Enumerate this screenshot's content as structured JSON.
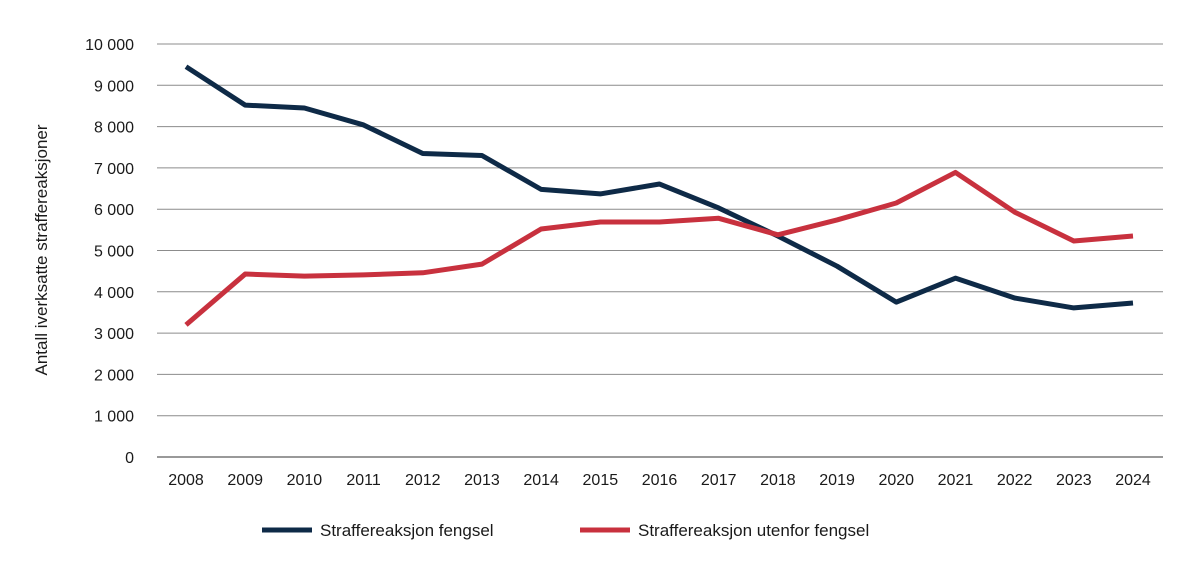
{
  "chart_data": {
    "type": "line",
    "title": "",
    "xlabel": "",
    "ylabel": "Antall iverksatte straffereaksjoner",
    "ylim": [
      0,
      10000
    ],
    "yticks": [
      0,
      1000,
      2000,
      3000,
      4000,
      5000,
      6000,
      7000,
      8000,
      9000,
      10000
    ],
    "ytick_labels": [
      "0",
      "1 000",
      "2 000",
      "3 000",
      "4 000",
      "5 000",
      "6 000",
      "7 000",
      "8 000",
      "9 000",
      "10 000"
    ],
    "grid": true,
    "legend_position": "bottom",
    "categories": [
      "2008",
      "2009",
      "2010",
      "2011",
      "2012",
      "2013",
      "2014",
      "2015",
      "2016",
      "2017",
      "2018",
      "2019",
      "2020",
      "2021",
      "2022",
      "2023",
      "2024"
    ],
    "series": [
      {
        "name": "Straffereaksjon fengsel",
        "color": "#0e2a47",
        "values": [
          9450,
          8520,
          8450,
          8040,
          7350,
          7300,
          6480,
          6370,
          6610,
          6030,
          5350,
          4620,
          3750,
          4330,
          3850,
          3610,
          3730
        ]
      },
      {
        "name": "Straffereaksjon utenfor fengsel",
        "color": "#c8313e",
        "values": [
          3200,
          4430,
          4380,
          4410,
          4460,
          4670,
          5520,
          5690,
          5690,
          5780,
          5380,
          5740,
          6150,
          6890,
          5930,
          5230,
          5350
        ]
      }
    ]
  }
}
